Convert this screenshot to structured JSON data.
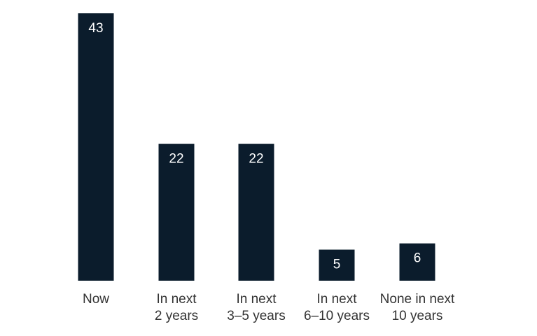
{
  "chart_data": {
    "type": "bar",
    "categories": [
      [
        "Now"
      ],
      [
        "In next",
        "2 years"
      ],
      [
        "In next",
        "3–5 years"
      ],
      [
        "In next",
        "6–10 years"
      ],
      [
        "None in next",
        "10 years"
      ]
    ],
    "values": [
      43,
      22,
      22,
      5,
      6
    ],
    "ylim": [
      0,
      43
    ],
    "grid": false,
    "bar_color": "#0b1c2c",
    "label_color": "#ffffff",
    "text_color": "#333333"
  }
}
